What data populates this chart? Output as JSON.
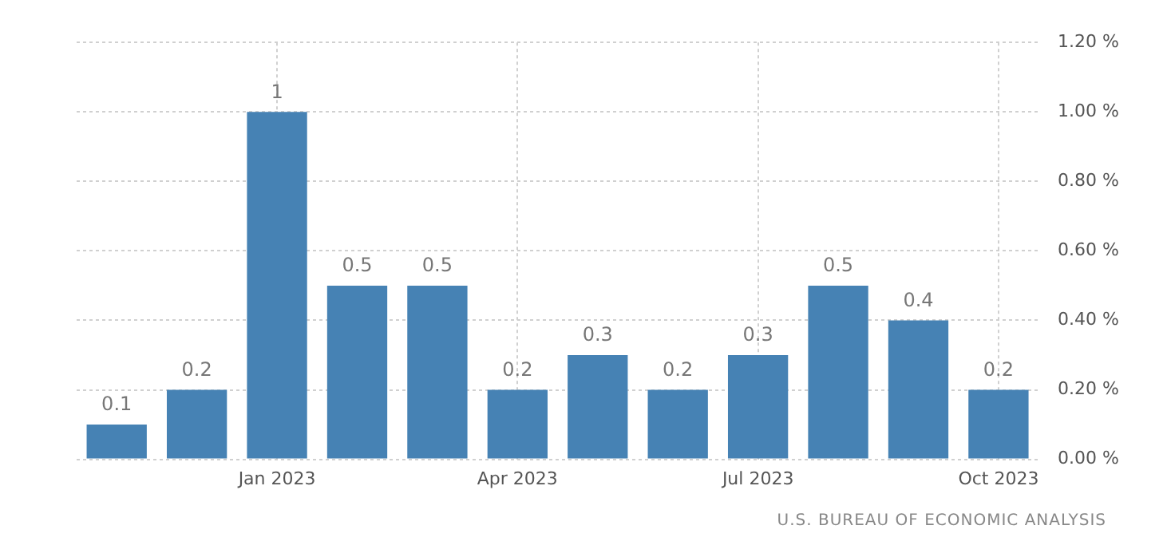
{
  "chart_data": {
    "type": "bar",
    "categories": [
      null,
      null,
      "Jan 2023",
      null,
      null,
      "Apr 2023",
      null,
      null,
      "Jul 2023",
      null,
      null,
      "Oct 2023"
    ],
    "values": [
      0.1,
      0.2,
      1,
      0.5,
      0.5,
      0.2,
      0.3,
      0.2,
      0.3,
      0.5,
      0.4,
      0.2
    ],
    "color": "#4682b4",
    "ylim": [
      0,
      1.2
    ],
    "yticks": [
      {
        "value": 0,
        "label": "0.00 %"
      },
      {
        "value": 0.2,
        "label": "0.20 %"
      },
      {
        "value": 0.4,
        "label": "0.40 %"
      },
      {
        "value": 0.6,
        "label": "0.60 %"
      },
      {
        "value": 0.8,
        "label": "0.80 %"
      },
      {
        "value": 1,
        "label": "1.00 %"
      },
      {
        "value": 1.2,
        "label": "1.20 %"
      }
    ],
    "grid": true,
    "data_labels": true,
    "annotations": [
      "U.S. BUREAU OF ECONOMIC ANALYSIS"
    ]
  }
}
